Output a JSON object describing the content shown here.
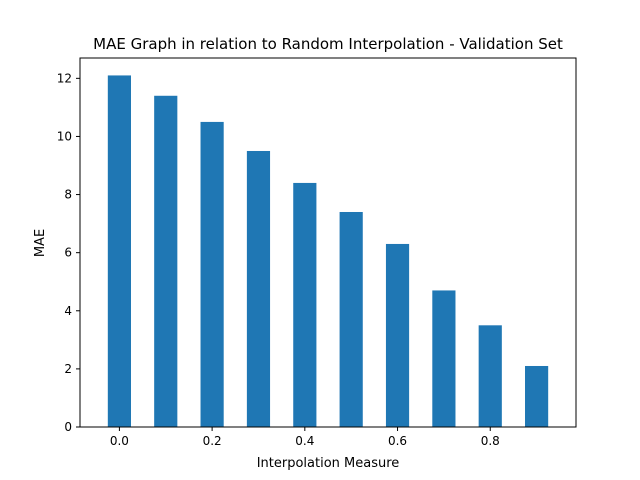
{
  "chart_data": {
    "type": "bar",
    "title": "MAE Graph in relation to Random Interpolation - Validation Set",
    "xlabel": "Interpolation Measure",
    "ylabel": "MAE",
    "x": [
      0.0,
      0.1,
      0.2,
      0.3,
      0.4,
      0.5,
      0.6,
      0.7,
      0.8,
      0.9
    ],
    "values": [
      12.1,
      11.4,
      10.5,
      9.5,
      8.4,
      7.4,
      6.3,
      4.7,
      3.5,
      2.1
    ],
    "bar_width": 0.05,
    "xlim": [
      -0.085,
      0.985
    ],
    "ylim": [
      0,
      12.7
    ],
    "x_ticks": [
      0.0,
      0.2,
      0.4,
      0.6,
      0.8
    ],
    "x_tick_labels": [
      "0.0",
      "0.2",
      "0.4",
      "0.6",
      "0.8"
    ],
    "y_ticks": [
      0,
      2,
      4,
      6,
      8,
      10,
      12
    ],
    "y_tick_labels": [
      "0",
      "2",
      "4",
      "6",
      "8",
      "10",
      "12"
    ],
    "bar_color": "#1f77b4",
    "grid": false,
    "legend": "none"
  }
}
